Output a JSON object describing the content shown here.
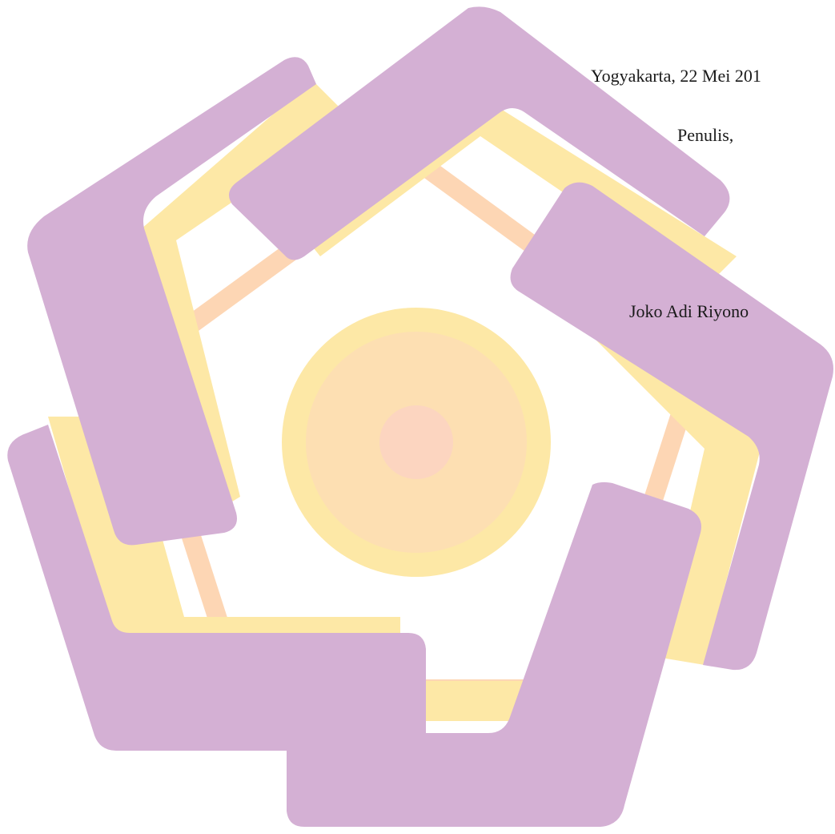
{
  "letter": {
    "place_date": "Yogyakarta, 22 Mei 201",
    "closing": "Penulis,",
    "author": "Joko Adi Riyono"
  },
  "watermark": {
    "icon": "university-logo-watermark",
    "colors": {
      "purple": "#d4b0d4",
      "purple_light": "#dcb0dc",
      "yellow": "#fde8a6",
      "orange": "#fdd2ac",
      "peach_center": "#fcd5c0"
    }
  }
}
